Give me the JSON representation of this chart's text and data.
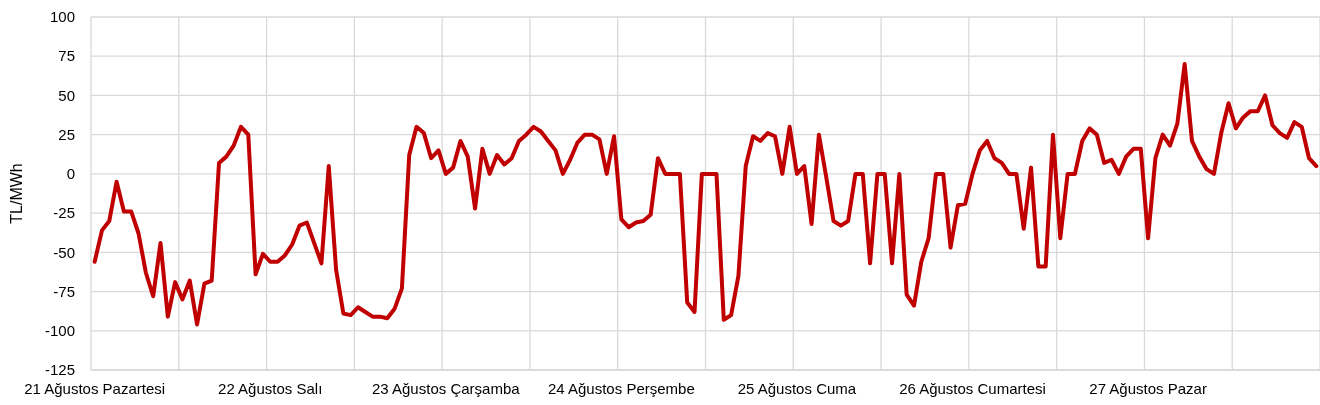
{
  "chart_data": {
    "type": "line",
    "ylabel": "TL/MWh",
    "categories": [
      "21 Ağustos Pazartesi",
      null,
      null,
      null,
      null,
      null,
      null,
      null,
      null,
      null,
      null,
      null,
      null,
      null,
      null,
      null,
      null,
      null,
      null,
      null,
      null,
      null,
      null,
      null,
      "22 Ağustos Salı",
      null,
      null,
      null,
      null,
      null,
      null,
      null,
      null,
      null,
      null,
      null,
      null,
      null,
      null,
      null,
      null,
      null,
      null,
      null,
      null,
      null,
      null,
      null,
      "23 Ağustos Çarşamba",
      null,
      null,
      null,
      null,
      null,
      null,
      null,
      null,
      null,
      null,
      null,
      null,
      null,
      null,
      null,
      null,
      null,
      null,
      null,
      null,
      null,
      null,
      null,
      "24 Ağustos Perşembe",
      null,
      null,
      null,
      null,
      null,
      null,
      null,
      null,
      null,
      null,
      null,
      null,
      null,
      null,
      null,
      null,
      null,
      null,
      null,
      null,
      null,
      null,
      null,
      "25 Ağustos Cuma",
      null,
      null,
      null,
      null,
      null,
      null,
      null,
      null,
      null,
      null,
      null,
      null,
      null,
      null,
      null,
      null,
      null,
      null,
      null,
      null,
      null,
      null,
      null,
      "26 Ağustos Cumartesi",
      null,
      null,
      null,
      null,
      null,
      null,
      null,
      null,
      null,
      null,
      null,
      null,
      null,
      null,
      null,
      null,
      null,
      null,
      null,
      null,
      null,
      null,
      null,
      "27 Ağustos Pazar",
      null,
      null,
      null,
      null,
      null,
      null,
      null,
      null,
      null,
      null,
      null,
      null,
      null,
      null,
      null,
      null,
      null,
      null,
      null,
      null,
      null,
      null,
      null
    ],
    "series": [
      {
        "color": "#c00000",
        "values": [
          -56,
          -36,
          -30,
          -5,
          -24,
          -24,
          -38,
          -63,
          -78,
          -44,
          -91,
          -69,
          -80,
          -68,
          -96,
          -70,
          -68,
          7,
          11,
          18,
          30,
          25,
          -64,
          -51,
          -56,
          -56,
          -52,
          -45,
          -33,
          -31,
          -44,
          -57,
          5,
          -61,
          -89,
          -90,
          -85,
          -88,
          -91,
          -91,
          -92,
          -86,
          -73,
          12,
          30,
          26,
          10,
          15,
          0,
          4,
          21,
          11,
          -22,
          16,
          0,
          12,
          6,
          10,
          21,
          25,
          30,
          27,
          21,
          15,
          0,
          9,
          20,
          25,
          25,
          22,
          0,
          24,
          -29,
          -34,
          -31,
          -30,
          -26,
          10,
          0,
          0,
          0,
          -82,
          -88,
          0,
          0,
          0,
          -93,
          -90,
          -65,
          5,
          24,
          21,
          26,
          24,
          0,
          30,
          0,
          5,
          -32,
          25,
          -2,
          -30,
          -33,
          -30,
          0,
          0,
          -57,
          0,
          0,
          -57,
          0,
          -77,
          -84,
          -56,
          -41,
          0,
          0,
          -47,
          -20,
          -19,
          0,
          15,
          21,
          10,
          7,
          0,
          0,
          -35,
          4,
          -59,
          -59,
          25,
          -41,
          0,
          0,
          21,
          29,
          25,
          7,
          9,
          0,
          11,
          16,
          16,
          -41,
          10,
          25,
          18,
          32,
          70,
          21,
          11,
          3,
          0,
          26,
          45,
          29,
          36,
          40,
          40,
          50,
          31,
          26,
          23,
          33,
          30,
          10,
          5
        ]
      }
    ],
    "ylim": [
      -125,
      100
    ],
    "yticks": [
      -125,
      -100,
      -75,
      -50,
      -25,
      0,
      25,
      50,
      75,
      100
    ],
    "grid": true,
    "line_style": "solid",
    "marker": "none"
  }
}
